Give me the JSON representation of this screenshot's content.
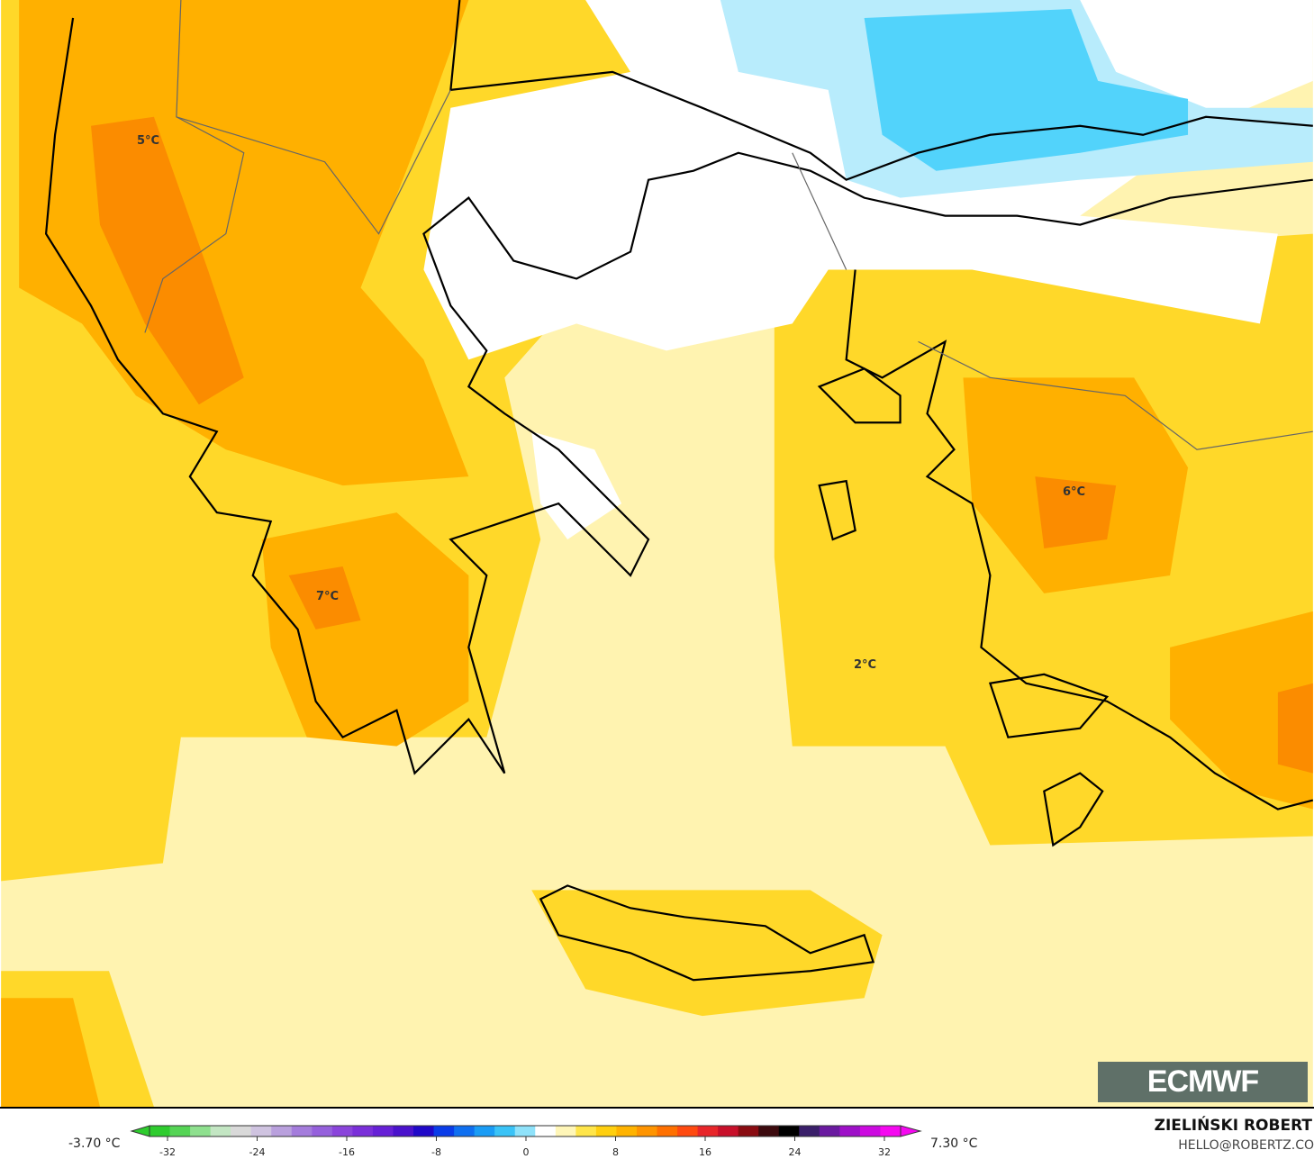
{
  "map": {
    "labels": [
      "5°C",
      "7°C",
      "6°C",
      "2°C"
    ],
    "colors": {
      "sea_light": "#fff3b0",
      "yellow": "#ffd829",
      "orange": "#ffb000",
      "dark_orange": "#fb8c00",
      "white": "#ffffff",
      "light_blue": "#b8ecfc",
      "blue": "#52d3fb",
      "coast": "#000000",
      "border": "#666666"
    }
  },
  "logo": {
    "text": "ECMWF"
  },
  "colorbar": {
    "min_label": "-3.70 °C",
    "max_label": "7.30 °C",
    "ticks": [
      "-32",
      "-24",
      "-16",
      "-8",
      "0",
      "8",
      "16",
      "24",
      "32"
    ],
    "colors": [
      "#2ecc2e",
      "#55d455",
      "#8ee08e",
      "#c3e6c3",
      "#d9d9d9",
      "#cfc3e0",
      "#b9a0dd",
      "#a47cdc",
      "#9560dc",
      "#8a44db",
      "#7a2fd9",
      "#6620d6",
      "#4a12cc",
      "#2008c8",
      "#0a3ce8",
      "#0f6ff0",
      "#1a9cf5",
      "#3ac3f7",
      "#8fe2fa",
      "#ffffff",
      "#fff6b8",
      "#ffe54a",
      "#ffcf0f",
      "#ffb300",
      "#ff9400",
      "#ff7000",
      "#ff4a10",
      "#e8262a",
      "#c8102a",
      "#8a0c12",
      "#3c0a0e",
      "#000000",
      "#3a1f6a",
      "#6a1aa0",
      "#9e10c8",
      "#cc0ae0",
      "#f508f0"
    ]
  },
  "credits": {
    "author": "ZIELIŃSKI ROBERT",
    "email": "HELLO@ROBERTZ.CO"
  }
}
